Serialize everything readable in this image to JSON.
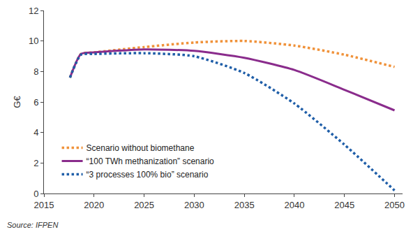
{
  "chart_data": {
    "type": "line",
    "y_label": "G€",
    "x": [
      2017.6,
      2018.7,
      2020,
      2025,
      2030,
      2035,
      2040,
      2045,
      2050
    ],
    "series": [
      {
        "name": "Scenario without biomethane",
        "color": "#f0923a",
        "line_style": "dotted",
        "values": [
          7.6,
          9.15,
          9.25,
          9.6,
          9.9,
          10.0,
          9.7,
          9.1,
          8.3
        ]
      },
      {
        "name": "“100 TWh methanization” scenario",
        "color": "#8a2c8c",
        "line_style": "solid",
        "values": [
          7.6,
          9.15,
          9.25,
          9.45,
          9.35,
          8.9,
          8.1,
          6.8,
          5.45
        ]
      },
      {
        "name": "“3 processes 100% bio” scenario",
        "color": "#1f5ea8",
        "line_style": "dotted",
        "values": [
          7.6,
          9.1,
          9.15,
          9.2,
          9.0,
          7.9,
          5.9,
          3.2,
          0.2
        ]
      }
    ],
    "xlim": [
      2015,
      2050.8
    ],
    "xticks": [
      2015,
      2020,
      2025,
      2030,
      2035,
      2040,
      2045,
      2050
    ],
    "ylim": [
      0,
      12
    ],
    "yticks": [
      0,
      2,
      4,
      6,
      8,
      10,
      12
    ],
    "grid": false,
    "legend": "lower left",
    "annotations": [
      {
        "text": "Source: IFPEN"
      }
    ]
  }
}
